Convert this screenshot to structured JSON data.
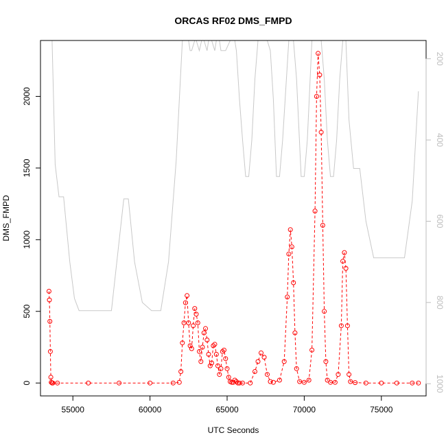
{
  "chart_data": {
    "type": "scatter",
    "title": "ORCAS RF02 DMS_FMPD",
    "xlabel": "UTC Seconds",
    "ylabel": "DMS_FMPD",
    "xlim": [
      52900,
      77900
    ],
    "ylim": [
      -90,
      2390
    ],
    "y2lim": [
      1030,
      155
    ],
    "x_ticks": [
      "55000",
      "60000",
      "65000",
      "70000",
      "75000"
    ],
    "y_ticks": [
      "0",
      "500",
      "1000",
      "1500",
      "2000"
    ],
    "y2_ticks": [
      "200",
      "400",
      "600",
      "800",
      "1000"
    ],
    "y2_reversed": true,
    "colors": {
      "points": "#ff0000",
      "altitude_line": "#c8c8c8",
      "axis": "#000000",
      "right_axis": "#bdbdbd"
    },
    "series": [
      {
        "marker": "open-circle",
        "line": "dashed",
        "x": [
          53450,
          53480,
          53510,
          53540,
          53570,
          53600,
          53650,
          53700,
          54000,
          56000,
          58000,
          60000,
          61500,
          61900,
          62000,
          62100,
          62200,
          62300,
          62400,
          62500,
          62600,
          62700,
          62800,
          62900,
          63000,
          63100,
          63200,
          63300,
          63400,
          63500,
          63600,
          63700,
          63800,
          63900,
          64000,
          64100,
          64200,
          64300,
          64400,
          64500,
          64600,
          64700,
          64800,
          64900,
          65000,
          65100,
          65200,
          65300,
          65400,
          65500,
          65600,
          65700,
          65800,
          66000,
          66500,
          66800,
          67000,
          67200,
          67400,
          67600,
          67800,
          68000,
          68400,
          68700,
          68900,
          69000,
          69100,
          69200,
          69300,
          69400,
          69500,
          69700,
          70000,
          70300,
          70500,
          70700,
          70800,
          70900,
          71000,
          71100,
          71200,
          71300,
          71400,
          71500,
          71700,
          72000,
          72200,
          72400,
          72500,
          72600,
          72700,
          72800,
          72900,
          73000,
          73300,
          74000,
          75000,
          76000,
          77000,
          77400
        ],
        "y": [
          640,
          580,
          430,
          220,
          40,
          5,
          0,
          0,
          0,
          0,
          0,
          0,
          0,
          5,
          80,
          280,
          420,
          560,
          610,
          420,
          260,
          240,
          400,
          520,
          480,
          420,
          220,
          150,
          250,
          350,
          380,
          300,
          200,
          120,
          140,
          260,
          270,
          200,
          120,
          60,
          100,
          220,
          230,
          170,
          100,
          40,
          10,
          5,
          5,
          20,
          10,
          0,
          0,
          0,
          0,
          80,
          150,
          210,
          180,
          60,
          10,
          5,
          20,
          150,
          600,
          900,
          1070,
          950,
          700,
          350,
          100,
          10,
          5,
          20,
          230,
          1200,
          2000,
          2300,
          2150,
          1750,
          1100,
          500,
          150,
          20,
          5,
          5,
          60,
          400,
          850,
          910,
          800,
          400,
          60,
          10,
          3,
          0,
          0,
          0,
          0,
          0
        ]
      },
      {
        "axis": "right",
        "line": "solid",
        "x": [
          53450,
          53650,
          53850,
          54100,
          54400,
          54800,
          55100,
          55400,
          57500,
          58300,
          58600,
          59000,
          59500,
          60100,
          60700,
          61200,
          61700,
          62100,
          62250,
          62500,
          62600,
          62700,
          62900,
          63000,
          63200,
          63350,
          63500,
          63700,
          63800,
          64000,
          64200,
          64300,
          64500,
          64600,
          64900,
          65200,
          65300,
          65500,
          65600,
          65800,
          66000,
          66200,
          66400,
          66600,
          66800,
          67000,
          67300,
          67600,
          67800,
          68000,
          68200,
          68400,
          68600,
          69000,
          69300,
          69500,
          69800,
          70000,
          70200,
          70500,
          70800,
          71100,
          71300,
          71500,
          71700,
          71900,
          72100,
          72300,
          72500,
          72700,
          72900,
          73200,
          73600,
          74000,
          74500,
          75000,
          76000,
          76500,
          77000,
          77400
        ],
        "y": [
          155,
          155,
          460,
          540,
          540,
          700,
          790,
          820,
          820,
          545,
          545,
          700,
          800,
          820,
          820,
          700,
          450,
          155,
          155,
          155,
          180,
          180,
          155,
          155,
          180,
          155,
          155,
          180,
          155,
          155,
          180,
          155,
          155,
          180,
          180,
          155,
          155,
          155,
          180,
          300,
          400,
          490,
          490,
          400,
          250,
          155,
          155,
          155,
          180,
          300,
          490,
          490,
          400,
          155,
          155,
          250,
          490,
          490,
          400,
          155,
          155,
          155,
          250,
          400,
          490,
          490,
          400,
          250,
          155,
          155,
          350,
          470,
          470,
          600,
          690,
          690,
          690,
          690,
          550,
          280
        ]
      }
    ]
  }
}
